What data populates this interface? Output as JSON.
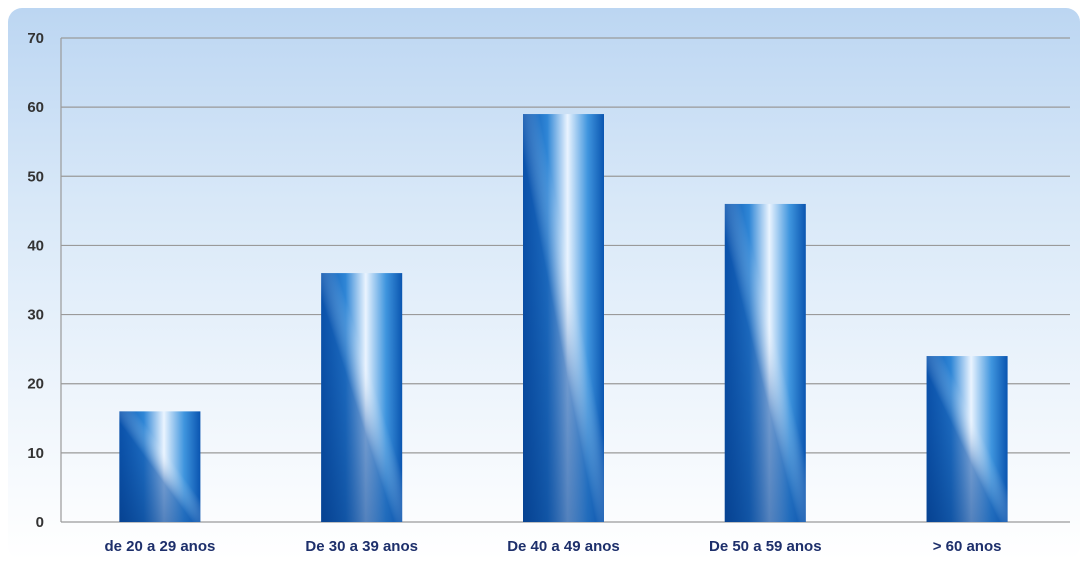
{
  "chart_data": {
    "type": "bar",
    "title": "",
    "xlabel": "",
    "ylabel": "",
    "categories": [
      "de 20 a 29 anos",
      "De 30 a 39 anos",
      "De 40 a 49 anos",
      "De 50 a 59 anos",
      "> 60 anos"
    ],
    "values": [
      16,
      36,
      59,
      46,
      24
    ],
    "ylim": [
      0,
      70
    ],
    "yticks": [
      "0",
      "10",
      "20",
      "30",
      "40",
      "50",
      "60",
      "70"
    ],
    "grid": true,
    "legend": "none",
    "colors": {
      "bar_dark": "#0a55b0",
      "bar_mid": "#2f86d6",
      "bar_light": "#eaf4ff",
      "grid": "#9a9a9a",
      "category_text": "#1d2f6b",
      "tick_text": "#333333"
    }
  }
}
